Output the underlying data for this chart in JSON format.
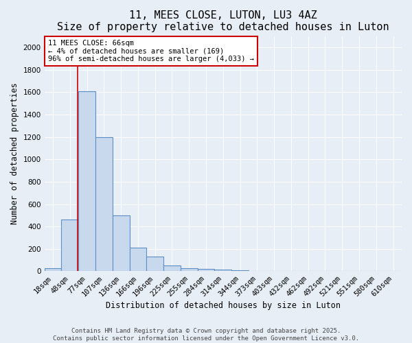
{
  "title": "11, MEES CLOSE, LUTON, LU3 4AZ",
  "subtitle": "Size of property relative to detached houses in Luton",
  "xlabel": "Distribution of detached houses by size in Luton",
  "ylabel": "Number of detached properties",
  "categories": [
    "18sqm",
    "48sqm",
    "77sqm",
    "107sqm",
    "136sqm",
    "166sqm",
    "196sqm",
    "225sqm",
    "255sqm",
    "284sqm",
    "314sqm",
    "344sqm",
    "373sqm",
    "403sqm",
    "432sqm",
    "462sqm",
    "492sqm",
    "521sqm",
    "551sqm",
    "580sqm",
    "610sqm"
  ],
  "values": [
    30,
    465,
    1610,
    1200,
    500,
    210,
    130,
    50,
    30,
    20,
    15,
    10,
    0,
    0,
    0,
    0,
    0,
    0,
    0,
    0,
    0
  ],
  "bar_color": "#c8d9ee",
  "bar_edge_color": "#5b8ec4",
  "bar_edge_width": 0.8,
  "vline_x": 1.45,
  "vline_color": "#cc0000",
  "annotation_text": "11 MEES CLOSE: 66sqm\n← 4% of detached houses are smaller (169)\n96% of semi-detached houses are larger (4,033) →",
  "annotation_box_color": "#ffffff",
  "annotation_box_edge": "#cc0000",
  "ylim": [
    0,
    2100
  ],
  "yticks": [
    0,
    200,
    400,
    600,
    800,
    1000,
    1200,
    1400,
    1600,
    1800,
    2000
  ],
  "background_color": "#e8eef5",
  "plot_bg_color": "#e8eef5",
  "footer_line1": "Contains HM Land Registry data © Crown copyright and database right 2025.",
  "footer_line2": "Contains public sector information licensed under the Open Government Licence v3.0.",
  "title_fontsize": 11,
  "axis_label_fontsize": 8.5,
  "tick_fontsize": 7.5,
  "annotation_fontsize": 7.5,
  "footer_fontsize": 6.5
}
